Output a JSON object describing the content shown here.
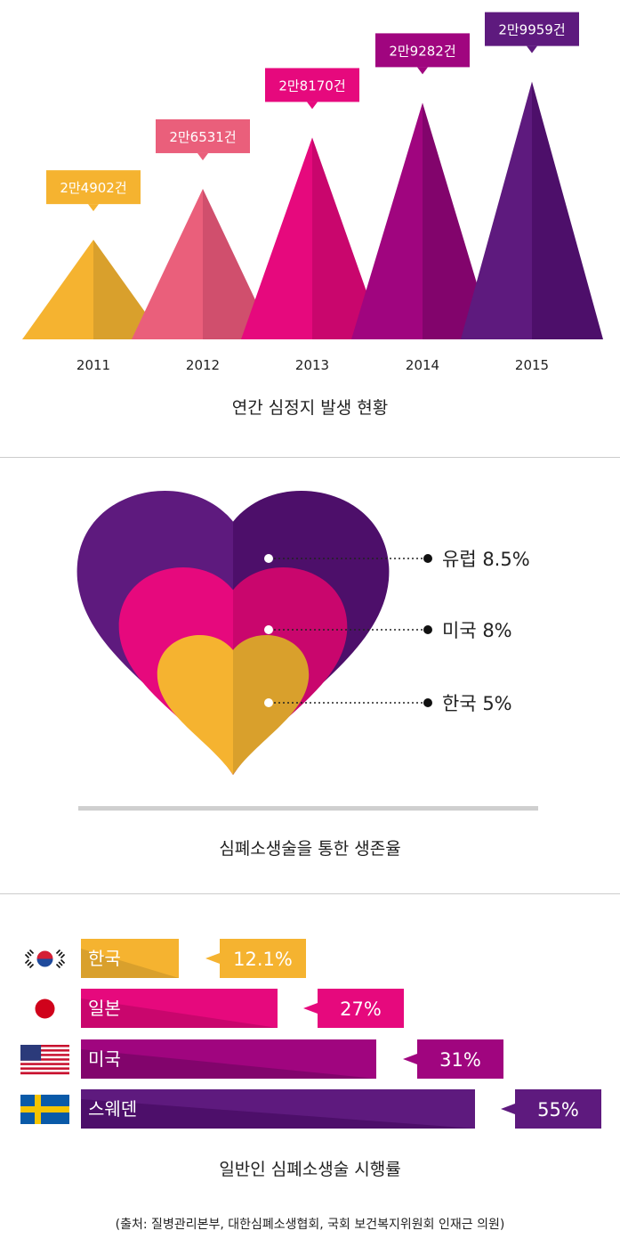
{
  "colors": [
    "#f5b330",
    "#ea5f7b",
    "#e6097d",
    "#a0057f",
    "#5e1a7e"
  ],
  "dark_colors": [
    "#d9a02c",
    "#d04f6d",
    "#c9066d",
    "#82046c",
    "#4d0f6a"
  ],
  "chart_data": [
    {
      "type": "bar",
      "title": "연간 심정지 발생 현황",
      "categories": [
        "2011",
        "2012",
        "2013",
        "2014",
        "2015"
      ],
      "values": [
        24902,
        26531,
        28170,
        29282,
        29959
      ],
      "labels": [
        "2만4902건",
        "2만6531건",
        "2만8170건",
        "2만9282건",
        "2만9959건"
      ]
    },
    {
      "type": "area",
      "title": "심폐소생술을 통한 생존율",
      "categories": [
        "유럽",
        "미국",
        "한국"
      ],
      "values": [
        8.5,
        8,
        5
      ],
      "labels": [
        "유럽 8.5%",
        "미국 8%",
        "한국 5%"
      ]
    },
    {
      "type": "bar",
      "title": "일반인 심폐소생술 시행률",
      "categories": [
        "한국",
        "일본",
        "미국",
        "스웨덴"
      ],
      "values": [
        12.1,
        27,
        31,
        55
      ],
      "labels": [
        "12.1%",
        "27%",
        "31%",
        "55%"
      ],
      "flag_icons": [
        "korea-flag-icon",
        "japan-flag-icon",
        "usa-flag-icon",
        "sweden-flag-icon"
      ]
    }
  ],
  "source": "(출처: 질병관리본부, 대한심폐소생협회, 국회 보건복지위원회 인재근 의원)"
}
